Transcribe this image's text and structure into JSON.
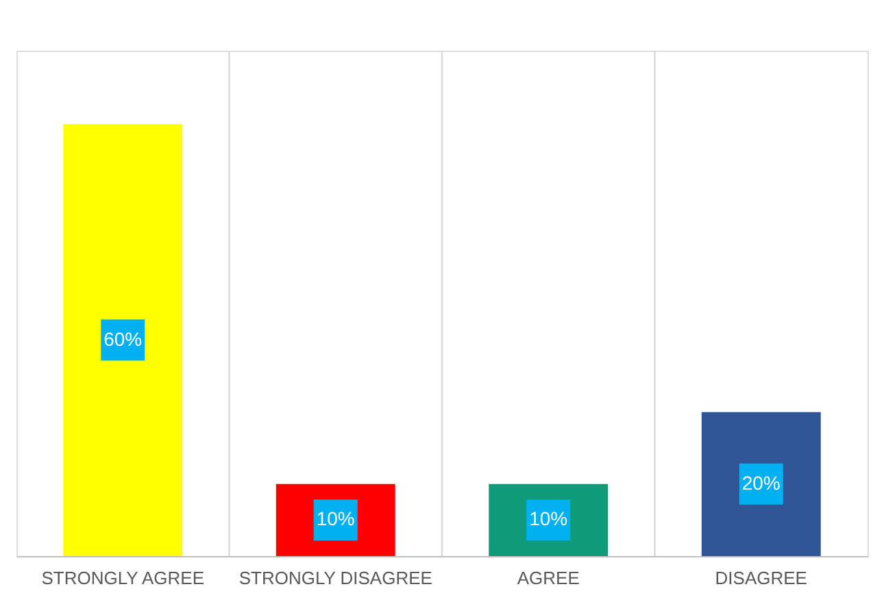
{
  "chart_data": {
    "type": "bar",
    "categories": [
      "STRONGLY AGREE",
      "STRONGLY DISAGREE",
      "AGREE",
      "DISAGREE"
    ],
    "values": [
      60,
      10,
      10,
      20
    ],
    "colors": [
      "#ffff00",
      "#ff0000",
      "#0f9a78",
      "#2f5597"
    ],
    "value_labels": [
      "60%",
      "10%",
      "10%",
      "20%"
    ],
    "grid": "x",
    "legend": false
  }
}
